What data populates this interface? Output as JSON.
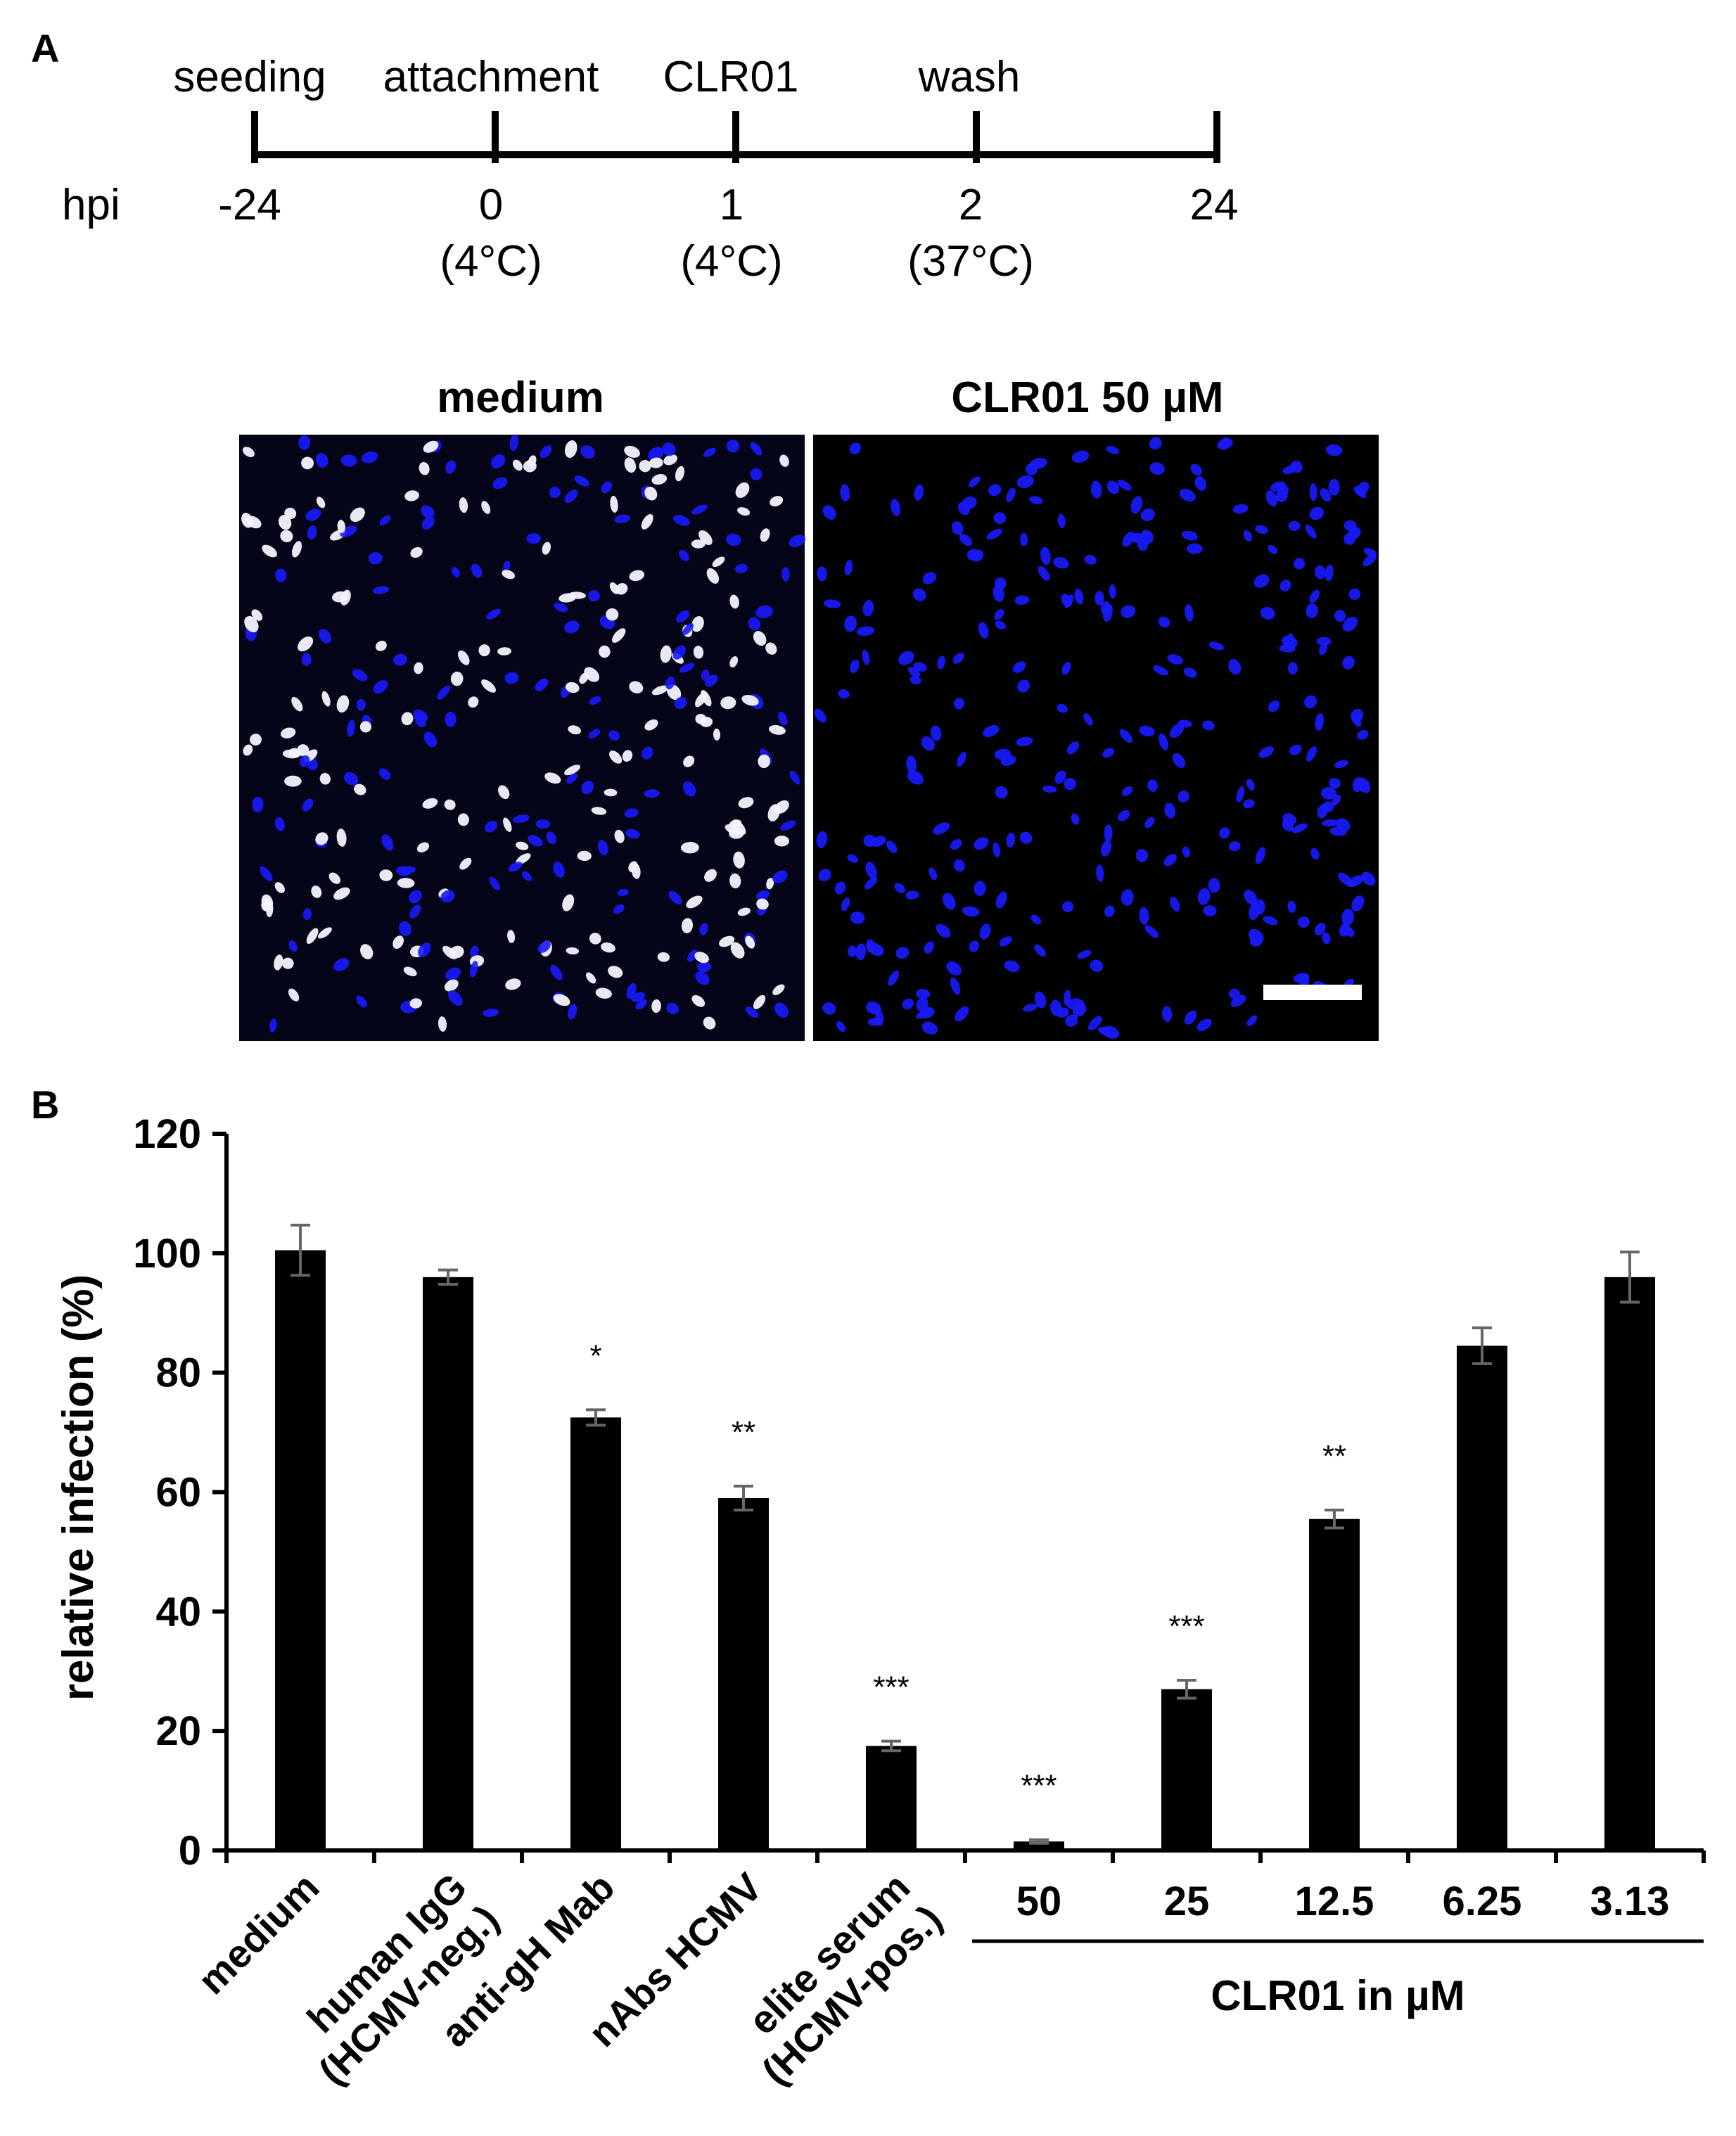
{
  "panel_a": {
    "label": "A",
    "timeline": {
      "unit_label": "hpi",
      "events": [
        {
          "name": "seeding",
          "time": "-24",
          "temp": ""
        },
        {
          "name": "attachment",
          "time": "0",
          "temp": "(4°C)"
        },
        {
          "name": "CLR01",
          "time": "1",
          "temp": "(4°C)"
        },
        {
          "name": "wash",
          "time": "2",
          "temp": "(37°C)"
        },
        {
          "name": "",
          "time": "24",
          "temp": ""
        }
      ]
    },
    "images": [
      {
        "title": "medium",
        "infected_nuclei_visible": true
      },
      {
        "title": "CLR01 50 µM",
        "infected_nuclei_visible": false
      }
    ],
    "colors": {
      "nuclei_dapi": "#1a1aff",
      "infected_nuclei": "#f4f4ff",
      "background": "#05051a"
    }
  },
  "chart_data": {
    "type": "bar",
    "panel_label": "B",
    "categories": [
      "medium",
      "human IgG (HCMV-neg.)",
      "anti-gH Mab",
      "nAbs HCMV",
      "elite serum (HCMV-pos.)",
      "50",
      "25",
      "12.5",
      "6.25",
      "3.13"
    ],
    "category_label_lines": [
      [
        "medium"
      ],
      [
        "human IgG",
        "(HCMV-neg.)"
      ],
      [
        "anti-gH Mab"
      ],
      [
        "nAbs HCMV"
      ],
      [
        "elite serum",
        "(HCMV-pos.)"
      ],
      [
        "50"
      ],
      [
        "25"
      ],
      [
        "12.5"
      ],
      [
        "6.25"
      ],
      [
        "3.13"
      ]
    ],
    "rotated_categories": 5,
    "values": [
      100.5,
      96.0,
      72.5,
      59.0,
      17.5,
      1.5,
      27.0,
      55.5,
      84.5,
      96.0
    ],
    "errors": [
      4.2,
      1.2,
      1.3,
      2.0,
      0.8,
      0.3,
      1.5,
      1.5,
      3.0,
      4.2
    ],
    "significance": [
      "",
      "",
      "*",
      "**",
      "***",
      "***",
      "***",
      "**",
      "",
      ""
    ],
    "ylabel": "relative infection (%)",
    "xlabel": "",
    "group_label": "CLR01 in µM",
    "ylim": [
      0,
      120
    ],
    "yticks": [
      0,
      20,
      40,
      60,
      80,
      100,
      120
    ],
    "bar_color": "#000000",
    "error_color": "#666666",
    "grid": false
  }
}
